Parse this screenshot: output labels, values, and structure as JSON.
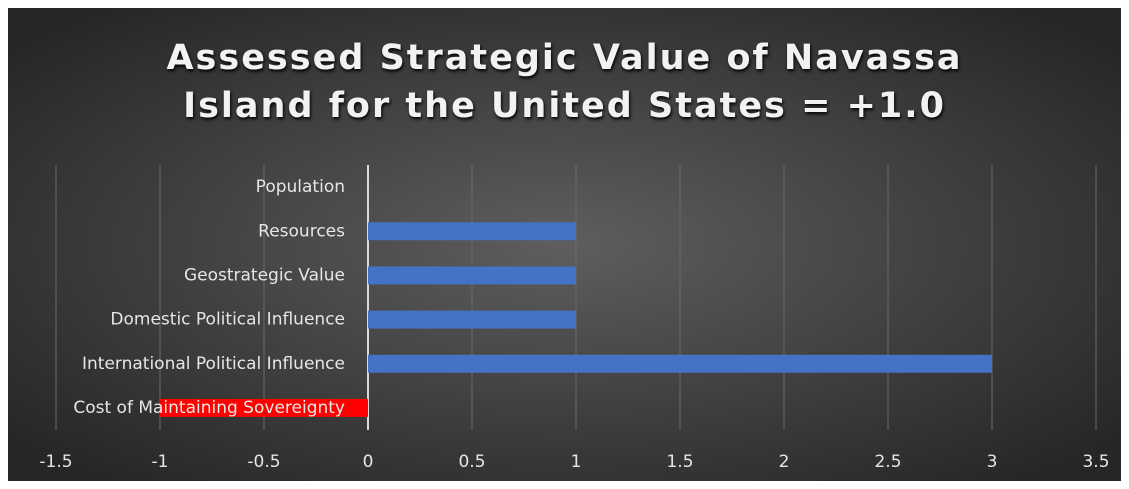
{
  "chart_data": {
    "type": "barh",
    "title": "Assessed Strategic Value of Navassa Island for the United States = +1.0",
    "categories": [
      "Population",
      "Resources",
      "Geostrategic Value",
      "Domestic Political Influence",
      "International Political Influence",
      "Cost of Maintaining Sovereignty"
    ],
    "values": [
      0,
      1,
      1,
      1,
      3,
      -1
    ],
    "colors": [
      "#4472c4",
      "#4472c4",
      "#4472c4",
      "#4472c4",
      "#4472c4",
      "#ff0000"
    ],
    "xlim": [
      -1.5,
      3.5
    ],
    "xticks": [
      -1.5,
      -1,
      -0.5,
      0,
      0.5,
      1,
      1.5,
      2,
      2.5,
      3,
      3.5
    ],
    "grid": true
  }
}
